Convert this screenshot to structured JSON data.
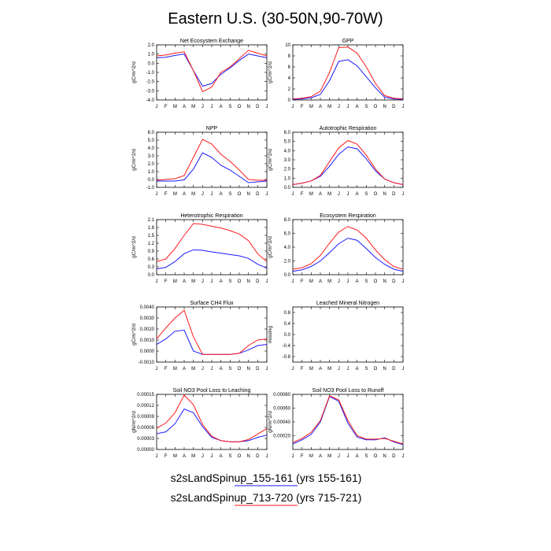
{
  "figure_title": "Eastern U.S. (30-50N,90-70W)",
  "legend": [
    {
      "label": "s2sLandSpinup_155-161 (yrs 155-161)",
      "color": "#1a1aff"
    },
    {
      "label": "s2sLandSpinup_713-720 (yrs 715-721)",
      "color": "#ff1a1a"
    }
  ],
  "chart_data": [
    {
      "type": "line",
      "title": "Net Ecosystem Exchange",
      "ylabel": "gC/m^2/d",
      "categories": [
        "J",
        "F",
        "M",
        "A",
        "M",
        "J",
        "J",
        "A",
        "S",
        "O",
        "N",
        "D",
        "J"
      ],
      "ylim": [
        -4.0,
        2.0
      ],
      "yticks": [
        2.0,
        1.0,
        0.0,
        -1.0,
        -2.0,
        -3.0,
        -4.0
      ],
      "ytick_labels": [
        "2.0",
        "1.0",
        "0.0",
        "-1.0",
        "-2.0",
        "-3.0",
        "-4.0"
      ],
      "series": [
        {
          "name": "s2sLandSpinup_155-161",
          "color": "#1a1aff",
          "values": [
            0.6,
            0.65,
            0.85,
            1.0,
            -0.8,
            -2.5,
            -2.2,
            -1.2,
            -0.5,
            0.3,
            1.0,
            0.8,
            0.6
          ]
        },
        {
          "name": "s2sLandSpinup_713-720",
          "color": "#ff1a1a",
          "values": [
            0.8,
            0.9,
            1.1,
            1.25,
            -0.8,
            -3.1,
            -2.6,
            -1.0,
            -0.4,
            0.5,
            1.4,
            1.1,
            0.8
          ]
        }
      ]
    },
    {
      "type": "line",
      "title": "GPP",
      "ylabel": "gC/m^2/d",
      "categories": [
        "J",
        "F",
        "M",
        "A",
        "M",
        "J",
        "J",
        "A",
        "S",
        "O",
        "N",
        "D",
        "J"
      ],
      "ylim": [
        0,
        10
      ],
      "yticks": [
        10,
        8,
        6,
        4,
        2,
        0
      ],
      "ytick_labels": [
        "10",
        "8",
        "6",
        "4",
        "2",
        "0"
      ],
      "series": [
        {
          "name": "s2sLandSpinup_155-161",
          "color": "#1a1aff",
          "values": [
            0.1,
            0.2,
            0.4,
            1.0,
            3.5,
            7.0,
            7.3,
            6.2,
            4.2,
            2.2,
            0.5,
            0.2,
            0.1
          ]
        },
        {
          "name": "s2sLandSpinup_713-720",
          "color": "#ff1a1a",
          "values": [
            0.2,
            0.3,
            0.6,
            1.6,
            5.0,
            9.5,
            9.6,
            8.5,
            6.0,
            3.0,
            0.8,
            0.3,
            0.2
          ]
        }
      ]
    },
    {
      "type": "line",
      "title": "NPP",
      "ylabel": "gC/m^2/d",
      "categories": [
        "J",
        "F",
        "M",
        "A",
        "M",
        "J",
        "J",
        "A",
        "S",
        "O",
        "N",
        "D",
        "J"
      ],
      "ylim": [
        -1.0,
        6.0
      ],
      "yticks": [
        6.0,
        5.0,
        4.0,
        3.0,
        2.0,
        1.0,
        0.0,
        -1.0
      ],
      "ytick_labels": [
        "6.0",
        "5.0",
        "4.0",
        "3.0",
        "2.0",
        "1.0",
        "0.0",
        "-1.0"
      ],
      "series": [
        {
          "name": "s2sLandSpinup_155-161",
          "color": "#1a1aff",
          "values": [
            -0.2,
            -0.2,
            -0.2,
            -0.05,
            1.3,
            3.4,
            2.8,
            1.8,
            1.2,
            0.4,
            -0.4,
            -0.3,
            -0.2
          ]
        },
        {
          "name": "s2sLandSpinup_713-720",
          "color": "#ff1a1a",
          "values": [
            -0.1,
            0.0,
            0.1,
            0.5,
            2.8,
            5.1,
            4.5,
            3.2,
            2.3,
            1.2,
            0.0,
            -0.1,
            -0.1
          ]
        }
      ]
    },
    {
      "type": "line",
      "title": "Autotrophic Respiration",
      "ylabel": "gC/m^2/d",
      "categories": [
        "J",
        "F",
        "M",
        "A",
        "M",
        "J",
        "J",
        "A",
        "S",
        "O",
        "N",
        "D",
        "J"
      ],
      "ylim": [
        0,
        6.0
      ],
      "yticks": [
        6.0,
        5.0,
        4.0,
        3.0,
        2.0,
        1.0,
        0.0
      ],
      "ytick_labels": [
        "6.0",
        "5.0",
        "4.0",
        "3.0",
        "2.0",
        "1.0",
        "0.0"
      ],
      "series": [
        {
          "name": "s2sLandSpinup_155-161",
          "color": "#1a1aff",
          "values": [
            0.3,
            0.45,
            0.7,
            1.2,
            2.3,
            3.6,
            4.4,
            4.2,
            3.1,
            1.8,
            0.9,
            0.5,
            0.3
          ]
        },
        {
          "name": "s2sLandSpinup_713-720",
          "color": "#ff1a1a",
          "values": [
            0.3,
            0.45,
            0.7,
            1.3,
            2.8,
            4.3,
            5.1,
            4.7,
            3.5,
            2.0,
            0.9,
            0.5,
            0.3
          ]
        }
      ]
    },
    {
      "type": "line",
      "title": "Heterotrophic Respiration",
      "ylabel": "gC/m^2/d",
      "categories": [
        "J",
        "F",
        "M",
        "A",
        "M",
        "J",
        "J",
        "A",
        "S",
        "O",
        "N",
        "D",
        "J"
      ],
      "ylim": [
        0,
        2.1
      ],
      "yticks": [
        2.1,
        1.8,
        1.5,
        1.2,
        0.9,
        0.6,
        0.3,
        0.0
      ],
      "ytick_labels": [
        "2.1",
        "1.8",
        "1.5",
        "1.2",
        "0.9",
        "0.6",
        "0.3",
        "0.0"
      ],
      "series": [
        {
          "name": "s2sLandSpinup_155-161",
          "color": "#1a1aff",
          "values": [
            0.22,
            0.28,
            0.5,
            0.8,
            0.95,
            0.93,
            0.87,
            0.82,
            0.77,
            0.72,
            0.62,
            0.4,
            0.25
          ]
        },
        {
          "name": "s2sLandSpinup_713-720",
          "color": "#ff1a1a",
          "values": [
            0.5,
            0.6,
            1.0,
            1.5,
            1.95,
            1.92,
            1.85,
            1.78,
            1.68,
            1.55,
            1.3,
            0.8,
            0.5
          ]
        }
      ]
    },
    {
      "type": "line",
      "title": "Ecosystem Respiration",
      "ylabel": "gC/m^2/d",
      "categories": [
        "J",
        "F",
        "M",
        "A",
        "M",
        "J",
        "J",
        "A",
        "S",
        "O",
        "N",
        "D",
        "J"
      ],
      "ylim": [
        0,
        8.0
      ],
      "yticks": [
        8.0,
        6.0,
        4.0,
        2.0,
        0.0
      ],
      "ytick_labels": [
        "8.0",
        "6.0",
        "4.0",
        "2.0",
        "0.0"
      ],
      "series": [
        {
          "name": "s2sLandSpinup_155-161",
          "color": "#1a1aff",
          "values": [
            0.5,
            0.7,
            1.2,
            2.0,
            3.2,
            4.5,
            5.3,
            5.0,
            3.8,
            2.5,
            1.5,
            0.8,
            0.5
          ]
        },
        {
          "name": "s2sLandSpinup_713-720",
          "color": "#ff1a1a",
          "values": [
            0.8,
            1.0,
            1.6,
            2.8,
            4.6,
            6.2,
            7.0,
            6.5,
            5.3,
            3.6,
            2.2,
            1.2,
            0.8
          ]
        }
      ]
    },
    {
      "type": "line",
      "title": "Surface CH4 Flux",
      "ylabel": "gC/m^2/d",
      "categories": [
        "J",
        "F",
        "M",
        "A",
        "M",
        "J",
        "J",
        "A",
        "S",
        "O",
        "N",
        "D",
        "J"
      ],
      "ylim": [
        -0.001,
        0.004
      ],
      "yticks": [
        0.004,
        0.003,
        0.002,
        0.001,
        0.0,
        -0.001
      ],
      "ytick_labels": [
        "0.0040",
        "0.0030",
        "0.0020",
        "0.0010",
        "0.0000",
        "-0.0010"
      ],
      "series": [
        {
          "name": "s2sLandSpinup_155-161",
          "color": "#1a1aff",
          "values": [
            0.0006,
            0.0011,
            0.0018,
            0.0019,
            0.0,
            -0.0003,
            -0.0003,
            -0.0003,
            -0.0003,
            -0.0002,
            0.0001,
            0.0005,
            0.0006
          ]
        },
        {
          "name": "s2sLandSpinup_713-720",
          "color": "#ff1a1a",
          "values": [
            0.0011,
            0.0021,
            0.003,
            0.0037,
            0.0013,
            -0.0003,
            -0.0003,
            -0.0003,
            -0.0003,
            -0.0002,
            0.0005,
            0.001,
            0.0011
          ]
        }
      ]
    },
    {
      "type": "line",
      "title": "Leached Mineral Nitrogen",
      "ylabel": "missing",
      "categories": [
        "J",
        "F",
        "M",
        "A",
        "M",
        "J",
        "J",
        "A",
        "S",
        "O",
        "N",
        "D",
        "J"
      ],
      "ylim": [
        -1.0,
        1.0
      ],
      "yticks": [
        0.8,
        0.4,
        0.0,
        -0.4,
        -0.8
      ],
      "ytick_labels": [
        "0.8",
        "0.4",
        "0.0",
        "-0.4",
        "-0.8"
      ],
      "series": []
    },
    {
      "type": "line",
      "title": "Soil NO3 Pool Loss to Leaching",
      "ylabel": "gN/m^2/d",
      "categories": [
        "J",
        "F",
        "M",
        "A",
        "M",
        "J",
        "J",
        "A",
        "S",
        "O",
        "N",
        "D",
        "J"
      ],
      "ylim": [
        0,
        0.00015
      ],
      "yticks": [
        0.00015,
        0.00012,
        9e-05,
        6e-05,
        3e-05,
        0.0
      ],
      "ytick_labels": [
        "0.00015",
        "0.00012",
        "0.00009",
        "0.00006",
        "0.00003",
        "0.00000"
      ],
      "series": [
        {
          "name": "s2sLandSpinup_155-161",
          "color": "#1a1aff",
          "values": [
            4.3e-05,
            4.8e-05,
            7e-05,
            0.00011,
            0.0001,
            6.2e-05,
            3.3e-05,
            2.4e-05,
            2.1e-05,
            2.1e-05,
            2.4e-05,
            3.3e-05,
            3.9e-05
          ]
        },
        {
          "name": "s2sLandSpinup_713-720",
          "color": "#ff1a1a",
          "values": [
            5.8e-05,
            7.2e-05,
            0.0001,
            0.000148,
            0.000122,
            6.8e-05,
            3.6e-05,
            2.4e-05,
            2.1e-05,
            2.1e-05,
            2.7e-05,
            4.2e-05,
            5.7e-05
          ]
        }
      ]
    },
    {
      "type": "line",
      "title": "Soil NO3 Pool Loss to Runoff",
      "ylabel": "gN/m^2/d",
      "categories": [
        "J",
        "F",
        "M",
        "A",
        "M",
        "J",
        "J",
        "A",
        "S",
        "O",
        "N",
        "D",
        "J"
      ],
      "ylim": [
        0,
        0.0008
      ],
      "yticks": [
        0.0008,
        0.0006,
        0.0004,
        0.0002
      ],
      "ytick_labels": [
        "0.00080",
        "0.00060",
        "0.00040",
        "0.00020"
      ],
      "series": [
        {
          "name": "s2sLandSpinup_155-161",
          "color": "#1a1aff",
          "values": [
            8e-05,
            0.00014,
            0.00022,
            0.0004,
            0.00077,
            0.0007,
            0.00038,
            0.00018,
            0.00014,
            0.00014,
            0.00017,
            0.00011,
            7e-05
          ]
        },
        {
          "name": "s2sLandSpinup_713-720",
          "color": "#ff1a1a",
          "values": [
            0.0001,
            0.00016,
            0.00025,
            0.00042,
            0.00078,
            0.00072,
            0.00042,
            0.0002,
            0.00015,
            0.00015,
            0.00016,
            0.00012,
            8e-05
          ]
        }
      ]
    }
  ]
}
